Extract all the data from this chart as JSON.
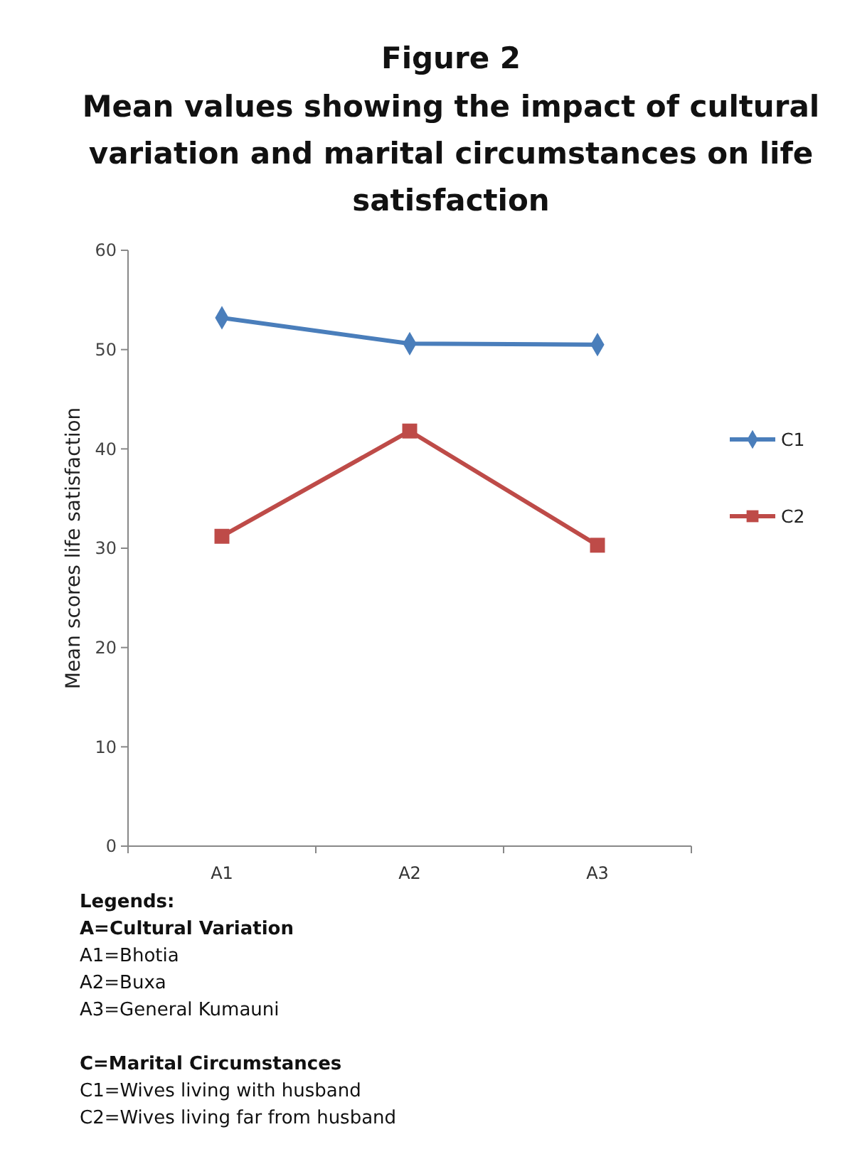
{
  "chart_data": {
    "type": "line",
    "title": "Figure 2",
    "subtitle": "Mean values showing the impact of cultural variation and marital circumstances on life satisfaction",
    "ylabel": "Mean scores life satisfaction",
    "categories": [
      "A1",
      "A2",
      "A3"
    ],
    "ylim": [
      0,
      60
    ],
    "yticks": [
      0,
      10,
      20,
      30,
      40,
      50,
      60
    ],
    "grid": false,
    "legend": "right",
    "series": [
      {
        "name": "C1",
        "color": "#4a7ebb",
        "marker": "diamond",
        "values": [
          53.2,
          50.6,
          50.5
        ]
      },
      {
        "name": "C2",
        "color": "#be4b48",
        "marker": "square",
        "values": [
          31.2,
          41.8,
          30.3
        ]
      }
    ],
    "annotations": [
      "Legends:",
      "A=Cultural Variation",
      "A1=Bhotia",
      "A2=Buxa",
      "A3=General Kumauni",
      "C=Marital Circumstances",
      "C1=Wives living with husband",
      "C2=Wives living far from husband"
    ]
  }
}
